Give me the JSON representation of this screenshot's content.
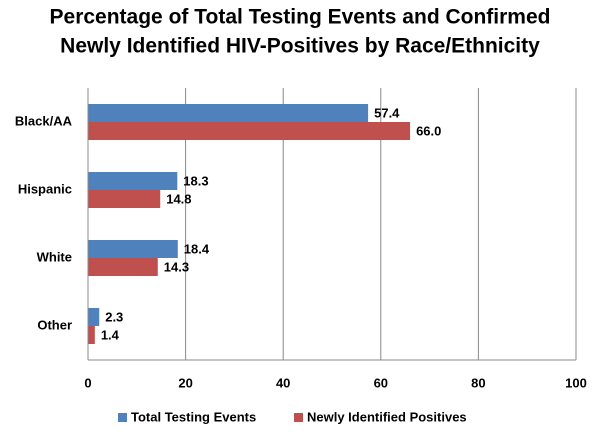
{
  "chart_data": {
    "type": "bar",
    "orientation": "horizontal",
    "title": [
      "Percentage of Total Testing Events and Confirmed",
      "Newly Identified HIV-Positives by Race/Ethnicity"
    ],
    "categories": [
      "Black/AA",
      "Hispanic",
      "White",
      "Other"
    ],
    "series": [
      {
        "name": "Total Testing Events",
        "color": "#4f81bd",
        "values": [
          57.4,
          18.3,
          18.4,
          2.3
        ],
        "value_labels": [
          "57.4",
          "18.3",
          "18.4",
          "2.3"
        ]
      },
      {
        "name": "Newly Identified Positives",
        "color": "#c0504d",
        "values": [
          66.0,
          14.8,
          14.3,
          1.4
        ],
        "value_labels": [
          "66.0",
          "14.8",
          "14.3",
          "1.4"
        ]
      }
    ],
    "xlim": [
      0,
      100
    ],
    "xticks": [
      0,
      20,
      40,
      60,
      80,
      100
    ],
    "grid": true,
    "legend": "bottom"
  }
}
